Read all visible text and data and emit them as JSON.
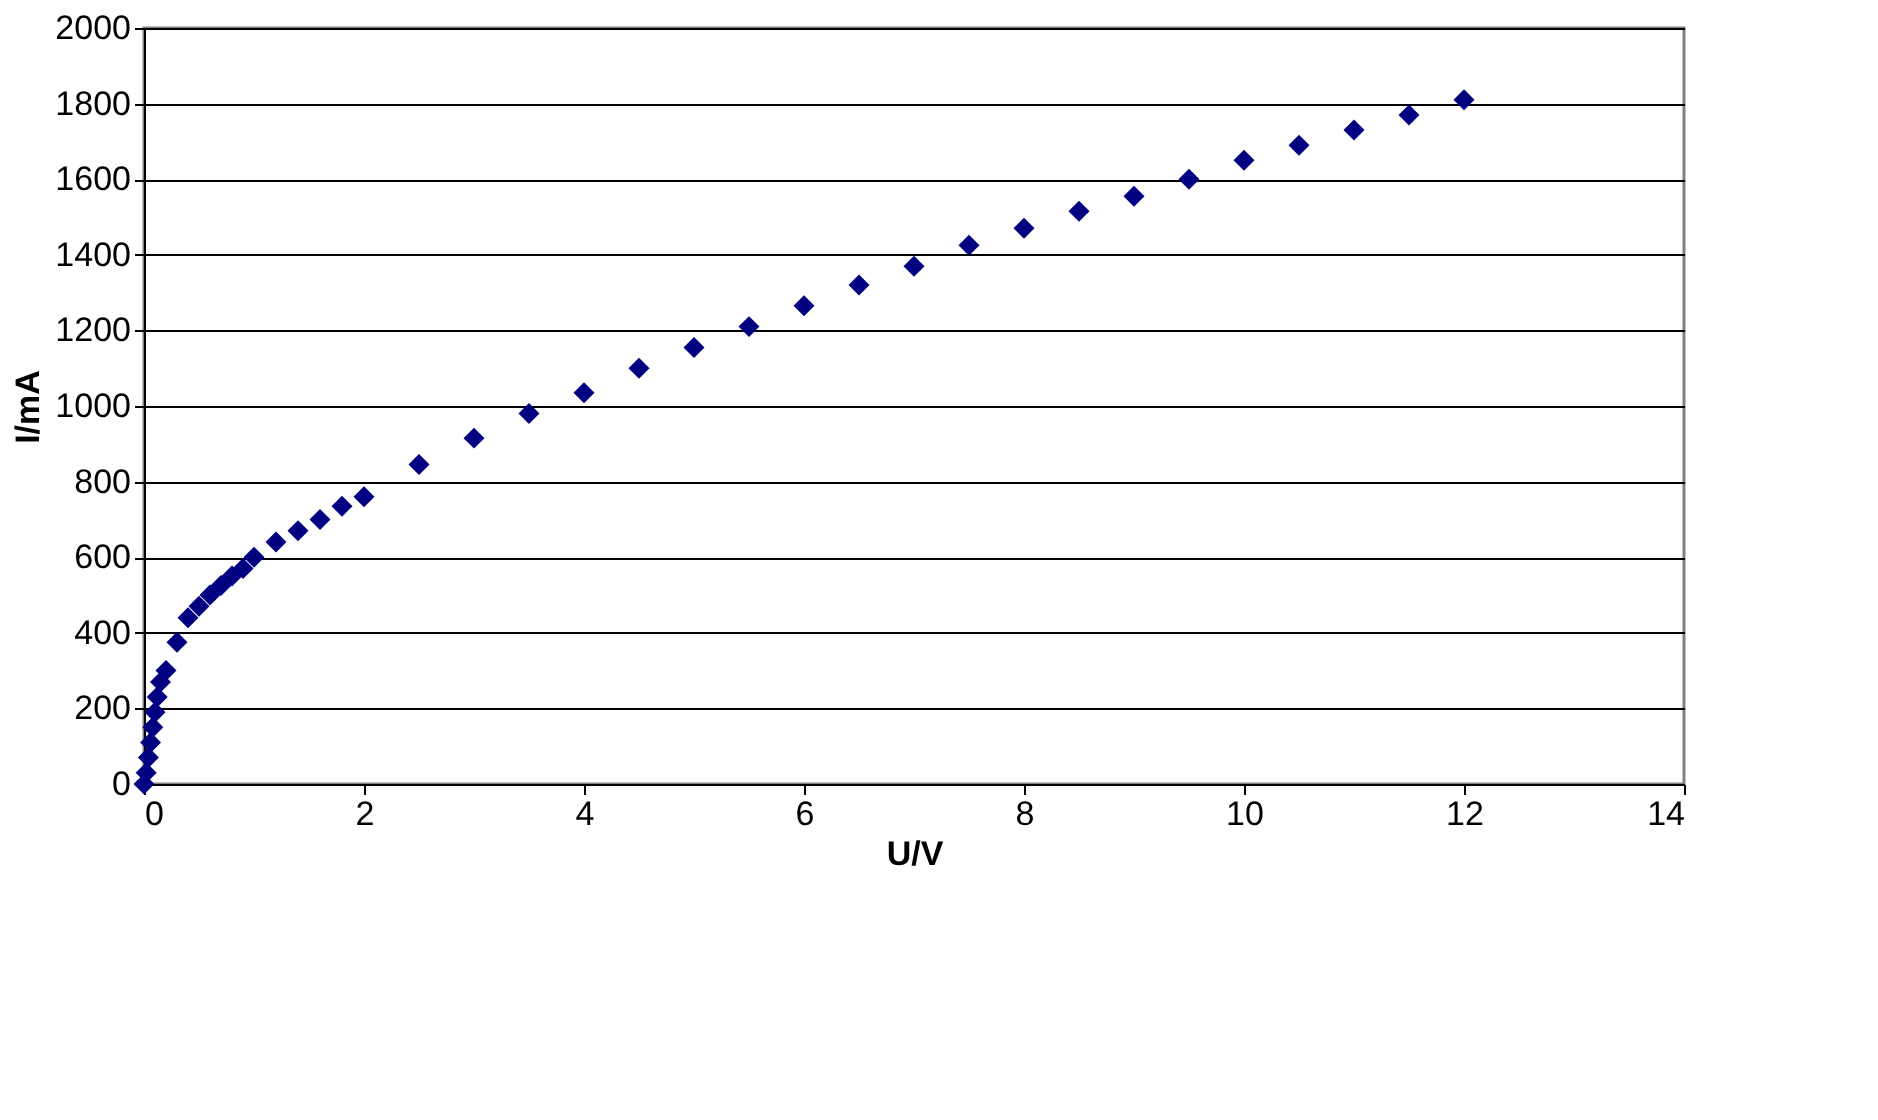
{
  "chart_data": {
    "type": "scatter",
    "xlabel": "U/V",
    "ylabel": "I/mA",
    "marker": "diamond",
    "grid": "y",
    "xlim": [
      0,
      14
    ],
    "xticks": [
      0,
      2,
      4,
      6,
      8,
      10,
      12,
      14
    ],
    "ylim": [
      0,
      2000
    ],
    "yticks": [
      0,
      200,
      400,
      600,
      800,
      1000,
      1200,
      1400,
      1600,
      1800,
      2000
    ],
    "series": [
      {
        "color": "#000080",
        "x": [
          0,
          0.02,
          0.04,
          0.06,
          0.08,
          0.1,
          0.12,
          0.15,
          0.2,
          0.3,
          0.4,
          0.5,
          0.6,
          0.7,
          0.8,
          0.9,
          1.0,
          1.2,
          1.4,
          1.6,
          1.8,
          2.0,
          2.5,
          3,
          3.5,
          4,
          4.5,
          5,
          5.5,
          6,
          6.5,
          7,
          7.5,
          8,
          8.5,
          9,
          9.5,
          10,
          10.5,
          11,
          11.5,
          12
        ],
        "values": [
          0,
          30,
          70,
          110,
          150,
          190,
          230,
          270,
          300,
          375,
          440,
          470,
          500,
          525,
          550,
          570,
          600,
          640,
          670,
          700,
          735,
          760,
          845,
          915,
          980,
          1035,
          1100,
          1155,
          1210,
          1265,
          1320,
          1370,
          1425,
          1470,
          1515,
          1555,
          1600,
          1650,
          1690,
          1730,
          1770,
          1810
        ]
      }
    ]
  }
}
